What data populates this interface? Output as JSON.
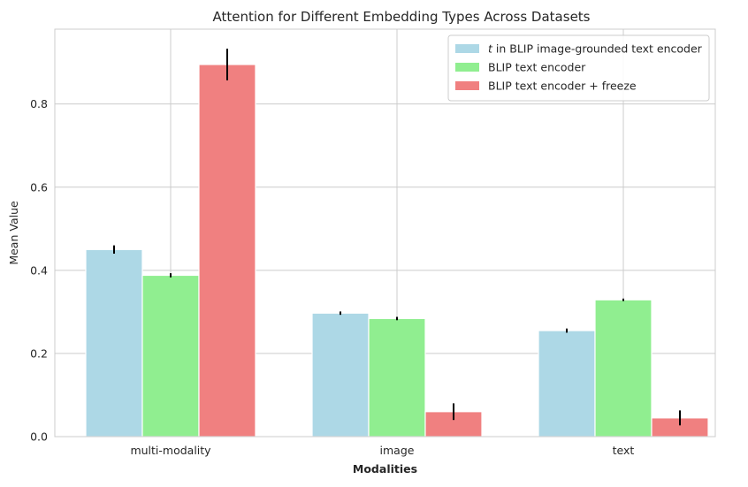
{
  "chart_data": {
    "type": "bar",
    "title": "Attention for Different Embedding Types Across Datasets",
    "xlabel": "Modalities",
    "ylabel": "Mean Value",
    "categories": [
      "multi-modality",
      "image",
      "text"
    ],
    "ylim": [
      0,
      0.98
    ],
    "yticks": [
      "0.0",
      "0.2",
      "0.4",
      "0.6",
      "0.8"
    ],
    "grid": true,
    "legend_position": "top-right",
    "series": [
      {
        "name_prefix": "t",
        "name": " in BLIP image-grounded text encoder",
        "color": "#add8e6",
        "values": [
          0.45,
          0.297,
          0.255
        ],
        "errors": [
          0.01,
          0.004,
          0.005
        ]
      },
      {
        "name": "BLIP text encoder",
        "color": "#90ee90",
        "values": [
          0.388,
          0.284,
          0.329
        ],
        "errors": [
          0.005,
          0.004,
          0.003
        ]
      },
      {
        "name": "BLIP text encoder + freeze",
        "color": "#f08080",
        "values": [
          0.895,
          0.06,
          0.045
        ],
        "errors": [
          0.038,
          0.02,
          0.018
        ]
      }
    ]
  }
}
